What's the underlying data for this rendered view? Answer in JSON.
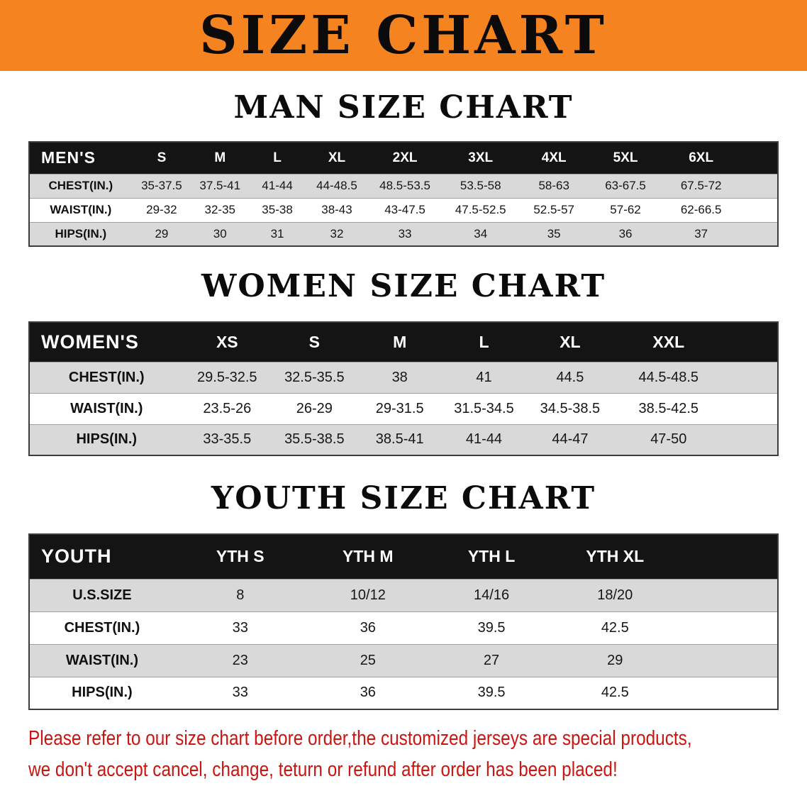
{
  "banner": {
    "title": "SIZE CHART"
  },
  "sections": [
    {
      "id": "men",
      "heading": "MAN SIZE CHART",
      "table": {
        "header": [
          "MEN'S",
          "S",
          "M",
          "L",
          "XL",
          "2XL",
          "3XL",
          "4XL",
          "5XL",
          "6XL"
        ],
        "rows": [
          {
            "label": "CHEST(IN.)",
            "values": [
              "35-37.5",
              "37.5-41",
              "41-44",
              "44-48.5",
              "48.5-53.5",
              "53.5-58",
              "58-63",
              "63-67.5",
              "67.5-72"
            ]
          },
          {
            "label": "WAIST(IN.)",
            "values": [
              "29-32",
              "32-35",
              "35-38",
              "38-43",
              "43-47.5",
              "47.5-52.5",
              "52.5-57",
              "57-62",
              "62-66.5"
            ]
          },
          {
            "label": "HIPS(IN.)",
            "values": [
              "29",
              "30",
              "31",
              "32",
              "33",
              "34",
              "35",
              "36",
              "37"
            ]
          }
        ]
      }
    },
    {
      "id": "women",
      "heading": "WOMEN SIZE CHART",
      "table": {
        "header": [
          "WOMEN'S",
          "XS",
          "S",
          "M",
          "L",
          "XL",
          "XXL"
        ],
        "rows": [
          {
            "label": "CHEST(IN.)",
            "values": [
              "29.5-32.5",
              "32.5-35.5",
              "38",
              "41",
              "44.5",
              "44.5-48.5"
            ]
          },
          {
            "label": "WAIST(IN.)",
            "values": [
              "23.5-26",
              "26-29",
              "29-31.5",
              "31.5-34.5",
              "34.5-38.5",
              "38.5-42.5"
            ]
          },
          {
            "label": "HIPS(IN.)",
            "values": [
              "33-35.5",
              "35.5-38.5",
              "38.5-41",
              "41-44",
              "44-47",
              "47-50"
            ]
          }
        ]
      }
    },
    {
      "id": "youth",
      "heading": "YOUTH SIZE CHART",
      "table": {
        "header": [
          "YOUTH",
          "YTH S",
          "YTH M",
          "YTH L",
          "YTH XL"
        ],
        "rows": [
          {
            "label": "U.S.SIZE",
            "values": [
              "8",
              "10/12",
              "14/16",
              "18/20"
            ]
          },
          {
            "label": "CHEST(IN.)",
            "values": [
              "33",
              "36",
              "39.5",
              "42.5"
            ]
          },
          {
            "label": "WAIST(IN.)",
            "values": [
              "23",
              "25",
              "27",
              "29"
            ]
          },
          {
            "label": "HIPS(IN.)",
            "values": [
              "33",
              "36",
              "39.5",
              "42.5"
            ]
          }
        ]
      }
    }
  ],
  "disclaimer": {
    "lines": [
      "Please refer to our size chart before order,the customized jerseys are special products,",
      "we don't accept cancel, change, teturn or refund after order has been placed!"
    ]
  },
  "colors": {
    "banner_bg": "#f5831f",
    "header_bg": "#141414",
    "row_alt_bg": "#d9d9d9",
    "disclaimer_red": "#cc1410"
  }
}
